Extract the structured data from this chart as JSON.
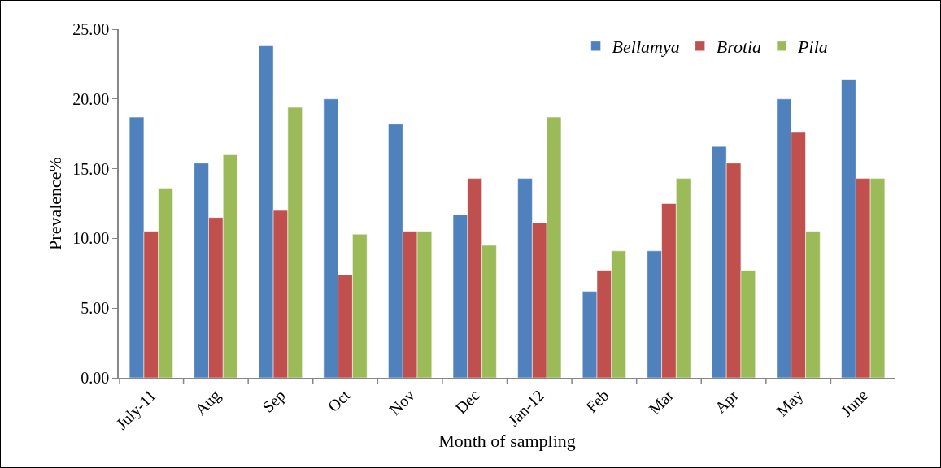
{
  "chart_data": {
    "type": "bar",
    "xlabel": "Month of sampling",
    "ylabel": "Prevalence%",
    "categories": [
      "July-11",
      "Aug",
      "Sep",
      "Oct",
      "Nov",
      "Dec",
      "Jan-12",
      "Feb",
      "Mar",
      "Apr",
      "May",
      "June"
    ],
    "series": [
      {
        "name": "Bellamya",
        "color": "#4f81bd",
        "values": [
          18.7,
          15.4,
          23.8,
          20.0,
          18.2,
          11.7,
          14.3,
          6.2,
          9.1,
          16.6,
          20.0,
          21.4
        ]
      },
      {
        "name": "Brotia",
        "color": "#c0504d",
        "values": [
          10.5,
          11.5,
          12.0,
          7.4,
          10.5,
          14.3,
          11.1,
          7.7,
          12.5,
          15.4,
          17.6,
          14.3
        ]
      },
      {
        "name": "Pila",
        "color": "#9bbb59",
        "values": [
          13.6,
          16.0,
          19.4,
          10.3,
          10.5,
          9.5,
          18.7,
          9.1,
          14.3,
          7.7,
          10.5,
          14.3
        ]
      }
    ],
    "ylim": [
      0,
      25
    ],
    "yticks": [
      {
        "value": 0,
        "label": "0.00"
      },
      {
        "value": 5,
        "label": "5.00"
      },
      {
        "value": 10,
        "label": "10.00"
      },
      {
        "value": 15,
        "label": "15.00"
      },
      {
        "value": 20,
        "label": "20.00"
      },
      {
        "value": 25,
        "label": "25.00"
      }
    ],
    "grid": false,
    "legend": "top right"
  }
}
